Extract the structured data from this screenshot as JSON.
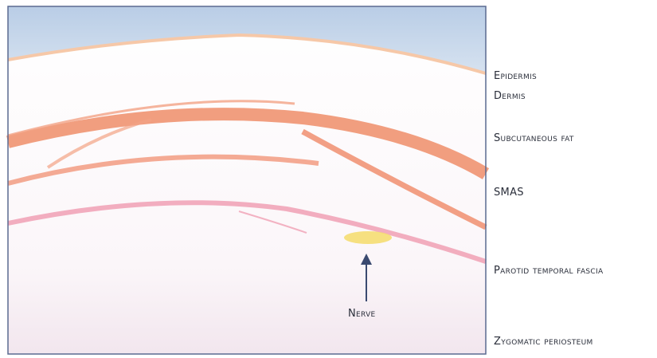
{
  "layers": [
    {
      "label": "Epidermis"
    },
    {
      "label": "Dermis"
    },
    {
      "label": "Subcutaneous fat"
    },
    {
      "label": "SMAS"
    },
    {
      "label": "Parotid temporal fascia"
    },
    {
      "label": "Zygomatic periosteum"
    }
  ],
  "nerve": {
    "label": "Nerve"
  }
}
